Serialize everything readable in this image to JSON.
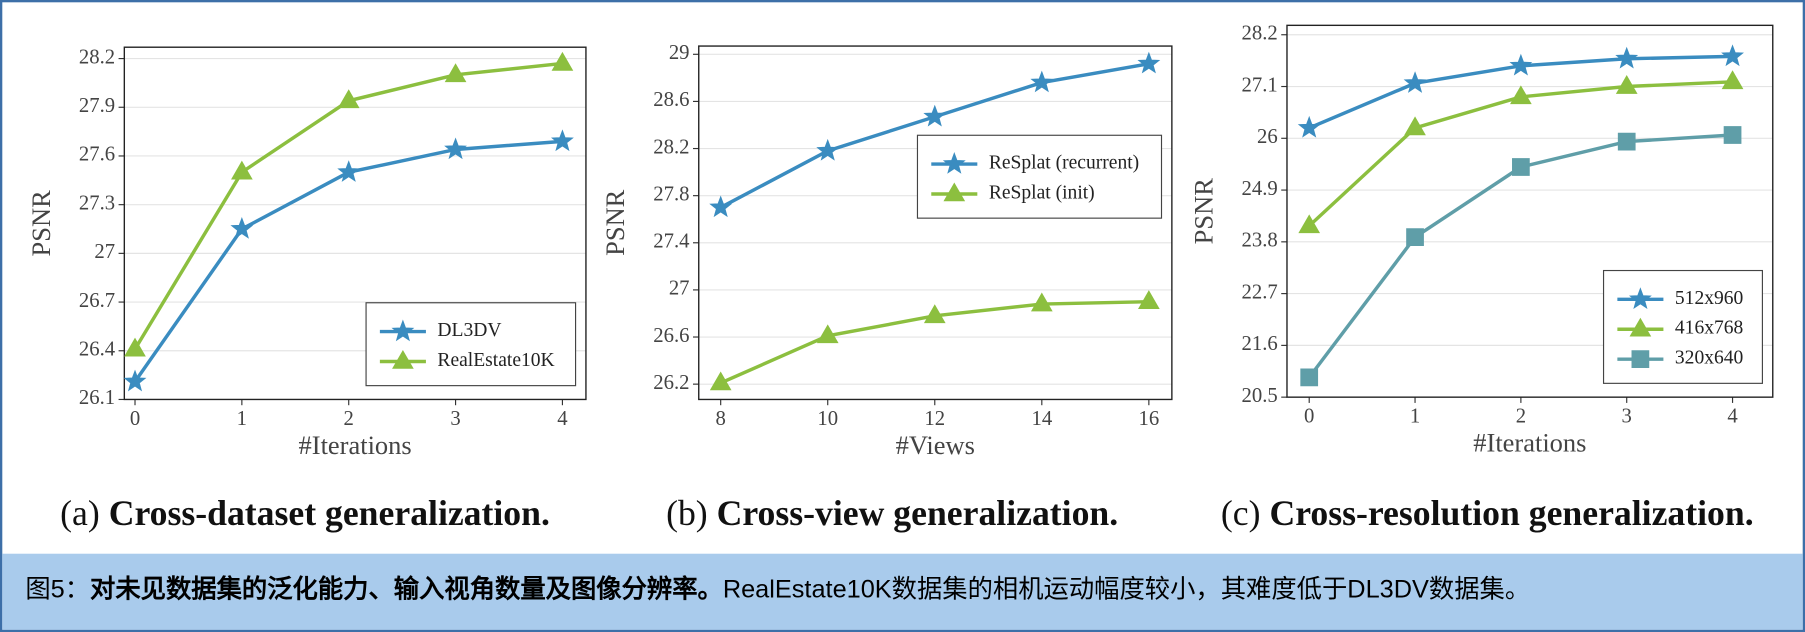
{
  "chart_data": [
    {
      "type": "line",
      "label": "(a)",
      "caption": "Cross-dataset generalization.",
      "xlabel": "#Iterations",
      "ylabel": "PSNR",
      "x": [
        0,
        1,
        2,
        3,
        4
      ],
      "xlim": [
        -0.1,
        4.22
      ],
      "xticks": [
        0,
        1,
        2,
        3,
        4
      ],
      "ylim": [
        26.1,
        28.27
      ],
      "yticks": [
        26.1,
        26.4,
        26.7,
        27.0,
        27.3,
        27.6,
        27.9,
        28.2
      ],
      "grid": true,
      "legend": "lower right",
      "series": [
        {
          "name": "DL3DV",
          "color": "#3a8cc0",
          "marker": "star",
          "values": [
            26.21,
            27.15,
            27.5,
            27.64,
            27.69
          ]
        },
        {
          "name": "RealEstate10K",
          "color": "#8cbf3f",
          "marker": "triangle",
          "values": [
            26.41,
            27.5,
            27.94,
            28.1,
            28.17
          ]
        }
      ]
    },
    {
      "type": "line",
      "label": "(b)",
      "caption": "Cross-view generalization.",
      "xlabel": "#Views",
      "ylabel": "PSNR",
      "x": [
        8,
        10,
        12,
        14,
        16
      ],
      "xlim": [
        7.59,
        16.43
      ],
      "xticks": [
        8,
        10,
        12,
        14,
        16
      ],
      "ylim": [
        26.07,
        29.07
      ],
      "yticks": [
        26.2,
        26.6,
        27.0,
        27.4,
        27.8,
        28.2,
        28.6,
        29.0
      ],
      "grid": true,
      "legend": "center right",
      "series": [
        {
          "name": "ReSplat (recurrent)",
          "color": "#3a8cc0",
          "marker": "star",
          "values": [
            27.7,
            28.18,
            28.47,
            28.76,
            28.92
          ]
        },
        {
          "name": "ReSplat (init)",
          "color": "#8cbf3f",
          "marker": "triangle",
          "values": [
            26.21,
            26.61,
            26.78,
            26.88,
            26.9
          ]
        }
      ]
    },
    {
      "type": "line",
      "label": "(c)",
      "caption": "Cross-resolution generalization.",
      "xlabel": "#Iterations",
      "ylabel": "PSNR",
      "x": [
        0,
        1,
        2,
        3,
        4
      ],
      "xlim": [
        -0.21,
        4.38
      ],
      "xticks": [
        0,
        1,
        2,
        3,
        4
      ],
      "ylim": [
        20.5,
        28.4
      ],
      "yticks": [
        20.5,
        21.6,
        22.7,
        23.8,
        24.9,
        26.0,
        27.1,
        28.2
      ],
      "grid": true,
      "legend": "lower right",
      "series": [
        {
          "name": "512x960",
          "color": "#3a8cc0",
          "marker": "star",
          "values": [
            26.22,
            27.17,
            27.54,
            27.69,
            27.74
          ]
        },
        {
          "name": "416x768",
          "color": "#8cbf3f",
          "marker": "triangle",
          "values": [
            24.14,
            26.22,
            26.88,
            27.1,
            27.2
          ]
        },
        {
          "name": "320x640",
          "color": "#5f9ea8",
          "marker": "square",
          "values": [
            20.92,
            23.9,
            25.39,
            25.93,
            26.07
          ]
        }
      ]
    }
  ],
  "figure_caption": {
    "label": "图5：",
    "bold": "对未见数据集的泛化能力、输入视角数量及图像分辨率。",
    "text": "RealEstate10K数据集的相机运动幅度较小，其难度低于DL3DV数据集。"
  }
}
